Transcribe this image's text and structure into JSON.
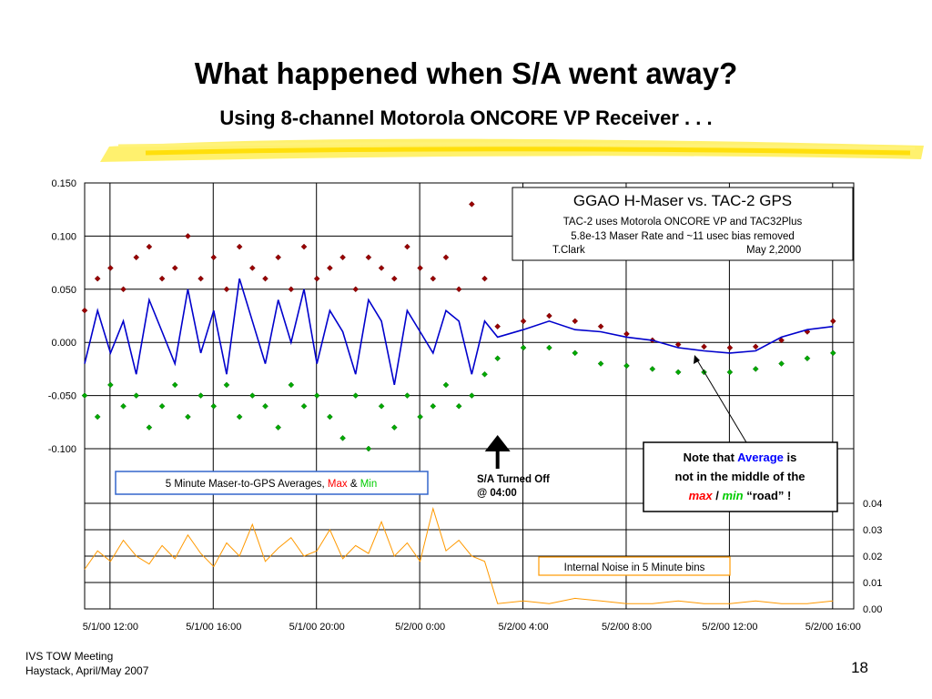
{
  "slide": {
    "title": "What happened when S/A went away?",
    "subtitle": "Using 8-channel Motorola ONCORE VP Receiver . . .",
    "footer_line1": "IVS TOW Meeting",
    "footer_line2": "Haystack, April/May 2007",
    "page_number": "18"
  },
  "chart_data": [
    {
      "type": "line",
      "title": "GGAO H-Maser vs. TAC-2 GPS",
      "notes": [
        "TAC-2 uses Motorola ONCORE VP and TAC32Plus",
        "5.8e-13 Maser Rate and ~11 usec bias removed"
      ],
      "credit_name": "T.Clark",
      "credit_date": "May 2,2000",
      "yticks": [
        "0.150",
        "0.100",
        "0.050",
        "0.000",
        "-0.050",
        "-0.100"
      ],
      "ylim": [
        -0.15,
        0.15
      ],
      "xticks": [
        "5/1/00 12:00",
        "5/1/00 16:00",
        "5/1/00 20:00",
        "5/2/00 0:00",
        "5/2/00 4:00",
        "5/2/00 8:00",
        "5/2/00 12:00",
        "5/2/00 16:00"
      ],
      "xlim_hours": [
        0,
        29.8
      ],
      "legend": {
        "prefix": "5 Minute Maser-to-GPS Averages, ",
        "max": "Max",
        "amp": " & ",
        "min": "Min"
      },
      "colors": {
        "average": "#0000cc",
        "max": "#990000",
        "min": "#00aa00",
        "max_text": "#ff0000",
        "min_text": "#00cc00"
      },
      "event": {
        "label_line1": "S/A Turned Off",
        "label_line2": "@ 04:00",
        "x_hour": 16
      },
      "note": {
        "line1_a": "Note that ",
        "line1_b": "Average",
        "line1_c": " is",
        "line2": "not in the middle of the",
        "line3_a": "max",
        "line3_b": " / ",
        "line3_c": "min",
        "line3_d": " “road” !",
        "average_color": "#0000ff"
      },
      "series": [
        {
          "name": "Average",
          "x": [
            0,
            0.5,
            1,
            1.5,
            2,
            2.5,
            3,
            3.5,
            4,
            4.5,
            5,
            5.5,
            6,
            6.5,
            7,
            7.5,
            8,
            8.5,
            9,
            9.5,
            10,
            10.5,
            11,
            11.5,
            12,
            12.5,
            13,
            13.5,
            14,
            14.5,
            15,
            15.5,
            16,
            17,
            18,
            19,
            20,
            21,
            22,
            23,
            24,
            25,
            26,
            27,
            28,
            29
          ],
          "y": [
            -0.02,
            0.03,
            -0.01,
            0.02,
            -0.03,
            0.04,
            0.01,
            -0.02,
            0.05,
            -0.01,
            0.03,
            -0.03,
            0.06,
            0.02,
            -0.02,
            0.04,
            0,
            0.05,
            -0.02,
            0.03,
            0.01,
            -0.03,
            0.04,
            0.02,
            -0.04,
            0.03,
            0.01,
            -0.01,
            0.03,
            0.02,
            -0.03,
            0.02,
            0.005,
            0.012,
            0.02,
            0.012,
            0.01,
            0.005,
            0.002,
            -0.005,
            -0.008,
            -0.01,
            -0.008,
            0.005,
            0.012,
            0.015
          ]
        },
        {
          "name": "Max",
          "x": [
            0,
            0.5,
            1,
            1.5,
            2,
            2.5,
            3,
            3.5,
            4,
            4.5,
            5,
            5.5,
            6,
            6.5,
            7,
            7.5,
            8,
            8.5,
            9,
            9.5,
            10,
            10.5,
            11,
            11.5,
            12,
            12.5,
            13,
            13.5,
            14,
            14.5,
            15,
            15.5,
            16,
            17,
            18,
            19,
            20,
            21,
            22,
            23,
            24,
            25,
            26,
            27,
            28,
            29
          ],
          "y": [
            0.03,
            0.06,
            0.07,
            0.05,
            0.08,
            0.09,
            0.06,
            0.07,
            0.1,
            0.06,
            0.08,
            0.05,
            0.09,
            0.07,
            0.06,
            0.08,
            0.05,
            0.09,
            0.06,
            0.07,
            0.08,
            0.05,
            0.08,
            0.07,
            0.06,
            0.09,
            0.07,
            0.06,
            0.08,
            0.05,
            0.13,
            0.06,
            0.015,
            0.02,
            0.025,
            0.02,
            0.015,
            0.008,
            0.002,
            -0.002,
            -0.004,
            -0.005,
            -0.004,
            0.002,
            0.01,
            0.02
          ]
        },
        {
          "name": "Min",
          "x": [
            0,
            0.5,
            1,
            1.5,
            2,
            2.5,
            3,
            3.5,
            4,
            4.5,
            5,
            5.5,
            6,
            6.5,
            7,
            7.5,
            8,
            8.5,
            9,
            9.5,
            10,
            10.5,
            11,
            11.5,
            12,
            12.5,
            13,
            13.5,
            14,
            14.5,
            15,
            15.5,
            16,
            17,
            18,
            19,
            20,
            21,
            22,
            23,
            24,
            25,
            26,
            27,
            28,
            29
          ],
          "y": [
            -0.05,
            -0.07,
            -0.04,
            -0.06,
            -0.05,
            -0.08,
            -0.06,
            -0.04,
            -0.07,
            -0.05,
            -0.06,
            -0.04,
            -0.07,
            -0.05,
            -0.06,
            -0.08,
            -0.04,
            -0.06,
            -0.05,
            -0.07,
            -0.09,
            -0.05,
            -0.1,
            -0.06,
            -0.08,
            -0.05,
            -0.07,
            -0.06,
            -0.04,
            -0.06,
            -0.05,
            -0.03,
            -0.015,
            -0.005,
            -0.005,
            -0.01,
            -0.02,
            -0.022,
            -0.025,
            -0.028,
            -0.028,
            -0.028,
            -0.025,
            -0.02,
            -0.015,
            -0.01
          ]
        }
      ]
    },
    {
      "type": "line",
      "yticks": [
        "0.04",
        "0.03",
        "0.02",
        "0.01",
        "0.00"
      ],
      "ylim": [
        0,
        0.04
      ],
      "legend": "Internal Noise in 5 Minute bins",
      "color": "#ff9900",
      "series": [
        {
          "name": "Internal Noise in 5 Minute bins",
          "x": [
            0,
            0.5,
            1,
            1.5,
            2,
            2.5,
            3,
            3.5,
            4,
            4.5,
            5,
            5.5,
            6,
            6.5,
            7,
            7.5,
            8,
            8.5,
            9,
            9.5,
            10,
            10.5,
            11,
            11.5,
            12,
            12.5,
            13,
            13.5,
            14,
            14.5,
            15,
            15.5,
            16,
            17,
            18,
            19,
            20,
            21,
            22,
            23,
            24,
            25,
            26,
            27,
            28,
            29
          ],
          "y": [
            0.015,
            0.022,
            0.018,
            0.026,
            0.02,
            0.017,
            0.024,
            0.019,
            0.028,
            0.021,
            0.016,
            0.025,
            0.02,
            0.032,
            0.018,
            0.023,
            0.027,
            0.02,
            0.022,
            0.03,
            0.019,
            0.024,
            0.021,
            0.033,
            0.02,
            0.025,
            0.018,
            0.038,
            0.022,
            0.026,
            0.02,
            0.018,
            0.002,
            0.003,
            0.002,
            0.004,
            0.003,
            0.002,
            0.002,
            0.003,
            0.002,
            0.002,
            0.003,
            0.002,
            0.002,
            0.003
          ]
        }
      ]
    }
  ]
}
